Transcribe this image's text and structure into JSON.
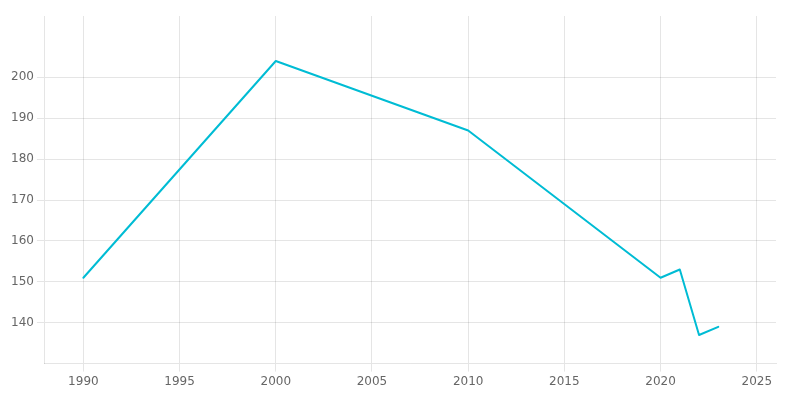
{
  "chart_data": {
    "type": "line",
    "x": [
      1990,
      2000,
      2010,
      2020,
      2021,
      2022,
      2023
    ],
    "values": [
      151,
      204,
      187,
      151,
      153,
      137,
      139
    ],
    "color": "#00BCD4",
    "xlim": [
      1988,
      2026
    ],
    "xticks": [
      1990,
      1995,
      2000,
      2005,
      2010,
      2015,
      2020,
      2025
    ],
    "ylim": [
      130,
      215
    ],
    "yticks": [
      140,
      150,
      160,
      170,
      180,
      190,
      200
    ],
    "grid": true
  }
}
